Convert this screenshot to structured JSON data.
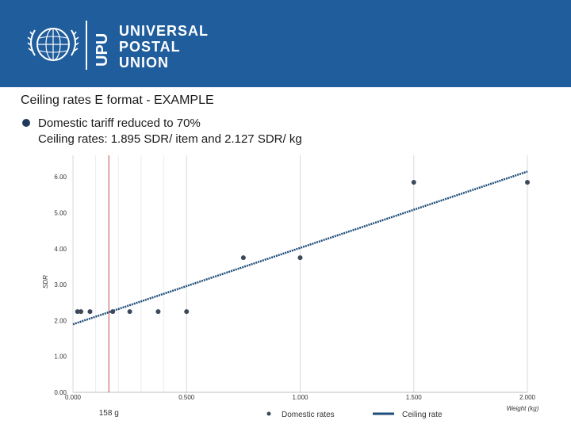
{
  "header": {
    "logo": {
      "vertical_text": "UPU",
      "lines": [
        "UNIVERSAL",
        "POSTAL",
        "UNION"
      ]
    },
    "background_color": "#1f5d9c"
  },
  "slide": {
    "title": "Ceiling rates E format - EXAMPLE",
    "bullet_line1": "Domestic tariff reduced to 70%",
    "bullet_line2": "Ceiling rates: 1.895 SDR/ item and 2.127 SDR/ kg"
  },
  "chart_data": {
    "type": "scatter",
    "xlabel": "Weight (kg)",
    "ylabel": "SDR",
    "xlim": [
      0,
      2
    ],
    "ylim": [
      0,
      6.6
    ],
    "x_ticks": [
      0,
      0.5,
      1,
      1.5,
      2
    ],
    "x_tick_labels": [
      "0.000",
      "0.500",
      "1.000",
      "1.500",
      "2.000"
    ],
    "y_ticks": [
      0,
      1,
      2,
      3,
      4,
      5,
      6
    ],
    "y_tick_labels": [
      "0.00",
      "1.00",
      "2.00",
      "3.00",
      "4.00",
      "5.00",
      "6.00"
    ],
    "grid": true,
    "series": [
      {
        "name": "Domestic rates",
        "type": "scatter",
        "color": "#3d4a5c",
        "points": [
          [
            0.02,
            2.25
          ],
          [
            0.035,
            2.25
          ],
          [
            0.075,
            2.25
          ],
          [
            0.175,
            2.25
          ],
          [
            0.25,
            2.25
          ],
          [
            0.375,
            2.25
          ],
          [
            0.5,
            2.25
          ],
          [
            0.75,
            3.75
          ],
          [
            1.0,
            3.75
          ],
          [
            1.5,
            5.85
          ],
          [
            2.0,
            5.85
          ]
        ]
      },
      {
        "name": "Ceiling rate",
        "type": "line",
        "color": "#1f4e79",
        "points": [
          [
            0,
            1.895
          ],
          [
            2,
            6.149
          ]
        ]
      }
    ],
    "annotations": [
      {
        "type": "vline",
        "x": 0.158,
        "label": "158 g",
        "color": "#c0504d"
      }
    ],
    "legend_position": "bottom"
  }
}
